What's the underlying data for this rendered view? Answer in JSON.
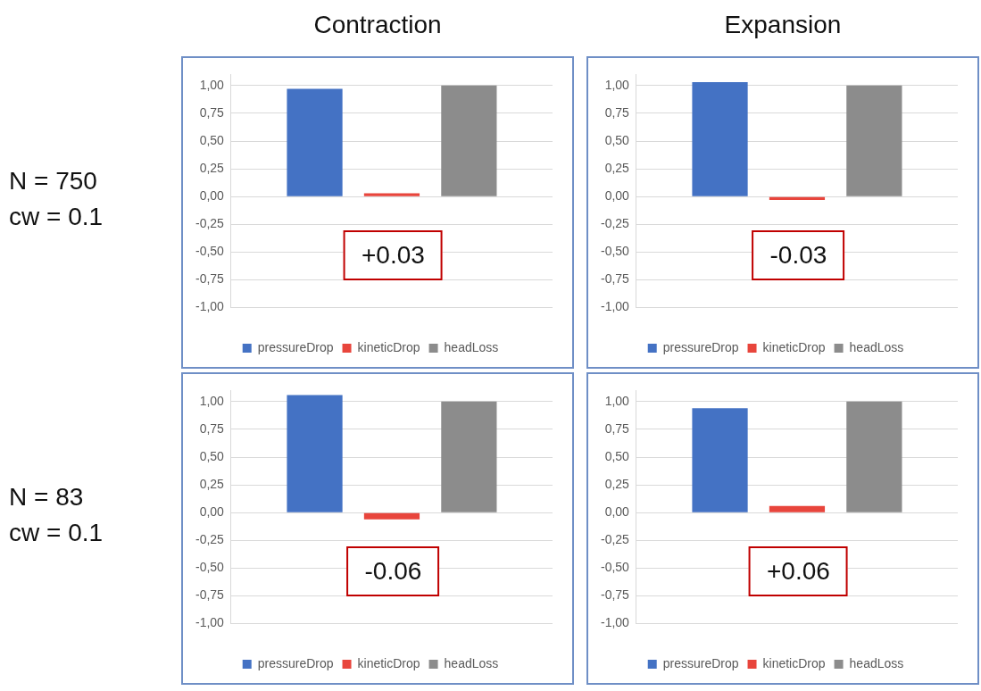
{
  "chart_data": [
    {
      "type": "bar",
      "title": "Contraction",
      "ylabel": "N  = 750\ncw = 0.1",
      "categories": [
        null
      ],
      "legend": "bottom",
      "grid": "y",
      "ylim": [
        -1,
        1.1
      ],
      "yticks": [
        {
          "value": -1,
          "label": "-1,00"
        },
        {
          "value": -0.75,
          "label": "-0,75"
        },
        {
          "value": -0.5,
          "label": "-0,50"
        },
        {
          "value": -0.25,
          "label": "-0,25"
        },
        {
          "value": 0,
          "label": "0,00"
        },
        {
          "value": 0.25,
          "label": "0,25"
        },
        {
          "value": 0.5,
          "label": "0,50"
        },
        {
          "value": 0.75,
          "label": "0,75"
        },
        {
          "value": 1,
          "label": "1,00"
        }
      ],
      "annotations": [
        "+0.03"
      ],
      "series": [
        {
          "name": "pressureDrop",
          "color": "#4472c4",
          "values": [
            0.97
          ]
        },
        {
          "name": "kineticDrop",
          "color": "#e8453c",
          "values": [
            0.03
          ]
        },
        {
          "name": "headLoss",
          "color": "#8c8c8c",
          "values": [
            1.0
          ]
        }
      ]
    },
    {
      "type": "bar",
      "title": "Expansion",
      "categories": [
        null
      ],
      "legend": "bottom",
      "grid": "y",
      "ylim": [
        -1,
        1.1
      ],
      "yticks": [
        {
          "value": -1,
          "label": "-1,00"
        },
        {
          "value": -0.75,
          "label": "-0,75"
        },
        {
          "value": -0.5,
          "label": "-0,50"
        },
        {
          "value": -0.25,
          "label": "-0,25"
        },
        {
          "value": 0,
          "label": "0,00"
        },
        {
          "value": 0.25,
          "label": "0,25"
        },
        {
          "value": 0.5,
          "label": "0,50"
        },
        {
          "value": 0.75,
          "label": "0,75"
        },
        {
          "value": 1,
          "label": "1,00"
        }
      ],
      "annotations": [
        "-0.03"
      ],
      "series": [
        {
          "name": "pressureDrop",
          "color": "#4472c4",
          "values": [
            1.03
          ]
        },
        {
          "name": "kineticDrop",
          "color": "#e8453c",
          "values": [
            -0.03
          ]
        },
        {
          "name": "headLoss",
          "color": "#8c8c8c",
          "values": [
            1.0
          ]
        }
      ]
    },
    {
      "type": "bar",
      "ylabel": "N  = 83\ncw = 0.1",
      "categories": [
        null
      ],
      "legend": "bottom",
      "grid": "y",
      "ylim": [
        -1,
        1.1
      ],
      "yticks": [
        {
          "value": -1,
          "label": "-1,00"
        },
        {
          "value": -0.75,
          "label": "-0,75"
        },
        {
          "value": -0.5,
          "label": "-0,50"
        },
        {
          "value": -0.25,
          "label": "-0,25"
        },
        {
          "value": 0,
          "label": "0,00"
        },
        {
          "value": 0.25,
          "label": "0,25"
        },
        {
          "value": 0.5,
          "label": "0,50"
        },
        {
          "value": 0.75,
          "label": "0,75"
        },
        {
          "value": 1,
          "label": "1,00"
        }
      ],
      "annotations": [
        "-0.06"
      ],
      "series": [
        {
          "name": "pressureDrop",
          "color": "#4472c4",
          "values": [
            1.06
          ]
        },
        {
          "name": "kineticDrop",
          "color": "#e8453c",
          "values": [
            -0.06
          ]
        },
        {
          "name": "headLoss",
          "color": "#8c8c8c",
          "values": [
            1.0
          ]
        }
      ]
    },
    {
      "type": "bar",
      "categories": [
        null
      ],
      "legend": "bottom",
      "grid": "y",
      "ylim": [
        -1,
        1.1
      ],
      "yticks": [
        {
          "value": -1,
          "label": "-1,00"
        },
        {
          "value": -0.75,
          "label": "-0,75"
        },
        {
          "value": -0.5,
          "label": "-0,50"
        },
        {
          "value": -0.25,
          "label": "-0,25"
        },
        {
          "value": 0,
          "label": "0,00"
        },
        {
          "value": 0.25,
          "label": "0,25"
        },
        {
          "value": 0.5,
          "label": "0,50"
        },
        {
          "value": 0.75,
          "label": "0,75"
        },
        {
          "value": 1,
          "label": "1,00"
        }
      ],
      "annotations": [
        "+0.06"
      ],
      "series": [
        {
          "name": "pressureDrop",
          "color": "#4472c4",
          "values": [
            0.94
          ]
        },
        {
          "name": "kineticDrop",
          "color": "#e8453c",
          "values": [
            0.06
          ]
        },
        {
          "name": "headLoss",
          "color": "#8c8c8c",
          "values": [
            1.0
          ]
        }
      ]
    }
  ]
}
